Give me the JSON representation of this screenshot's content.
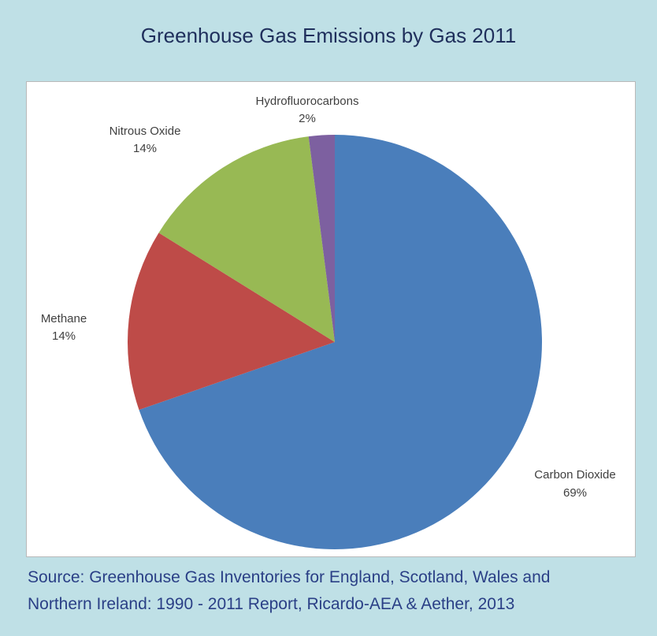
{
  "title": "Greenhouse Gas Emissions by Gas 2011",
  "source_line1": "Source: Greenhouse Gas Inventories for England, Scotland, Wales and",
  "source_line2": "Northern Ireland: 1990 - 2011 Report, Ricardo-AEA & Aether, 2013",
  "chart_data": {
    "type": "pie",
    "title": "Greenhouse Gas Emissions by Gas 2011",
    "start": "12 o'clock, clockwise",
    "slices": [
      {
        "name": "Carbon Dioxide",
        "value": 69,
        "label": "69%",
        "color": "#4a7ebb"
      },
      {
        "name": "Methane",
        "value": 14,
        "label": "14%",
        "color": "#be4b48"
      },
      {
        "name": "Nitrous Oxide",
        "value": 14,
        "label": "14%",
        "color": "#98b954"
      },
      {
        "name": "Hydrofluorocarbons",
        "value": 2,
        "label": "2%",
        "color": "#7d60a0"
      }
    ]
  }
}
